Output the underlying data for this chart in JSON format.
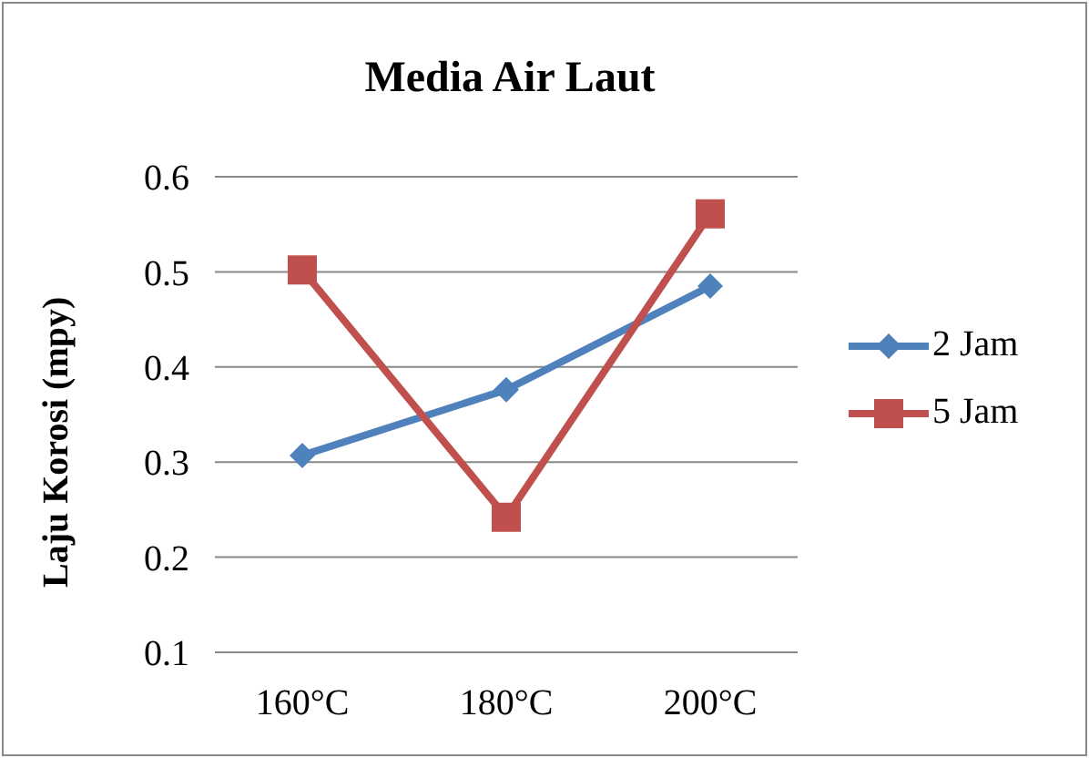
{
  "chart_data": {
    "type": "line",
    "title": "Media Air Laut",
    "ylabel": "Laju Korosi (mpy)",
    "categories": [
      "160°C",
      "180°C",
      "200°C"
    ],
    "series": [
      {
        "name": "2 Jam",
        "color": "#4f81bd",
        "values": [
          0.307,
          0.376,
          0.485
        ],
        "marker": "diamond"
      },
      {
        "name": "5 Jam",
        "color": "#c0504d",
        "values": [
          0.502,
          0.242,
          0.561
        ],
        "marker": "square"
      }
    ],
    "ylim": [
      0.1,
      0.6
    ],
    "yticks": [
      0.1,
      0.2,
      0.3,
      0.4,
      0.5,
      0.6
    ],
    "grid": "y",
    "legend": "right"
  }
}
